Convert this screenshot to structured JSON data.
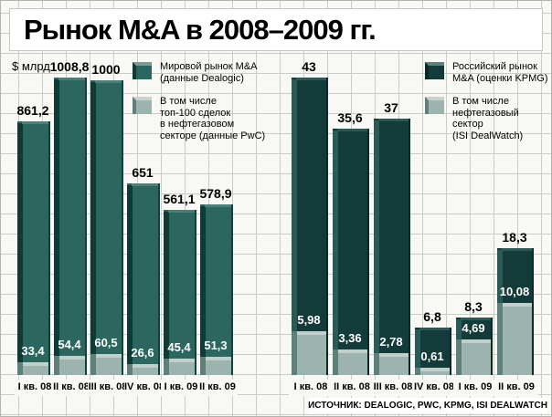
{
  "title": "Рынок M&A в 2008–2009 гг.",
  "ylabel": "$ млрд",
  "source": "ИСТОЧНИК: DEALOGIC, PWC, KPMG, ISI DEALWATCH",
  "legend_left": [
    {
      "label": "Мировой рынок M&A\n(данные Dealogic)",
      "swatch": "world"
    },
    {
      "label": "В том числе\nтоп-100 сделок\nв нефтегазовом\nсекторе (данные PwC)",
      "swatch": "oilgas"
    }
  ],
  "legend_right": [
    {
      "label": "Российский рынок\nM&A (оценки KPMG)",
      "swatch": "russia"
    },
    {
      "label": "В том числе\nнефтегазовый\nсектор\n(ISI DealWatch)",
      "swatch": "oilgas"
    }
  ],
  "colors": {
    "world_bar": "#2b675e",
    "russia_bar": "#123b39",
    "oil_gas_bar": "#9db3ae",
    "background": "#f8f8f4",
    "grid_line": "#cbcbc8"
  },
  "chart_data": [
    {
      "type": "bar",
      "title": "Мировой рынок M&A (данные Dealogic)",
      "unit": "$ млрд",
      "categories": [
        "I кв. 08",
        "II кв. 08",
        "III кв. 08",
        "IV кв. 08",
        "I кв. 09",
        "II кв. 09"
      ],
      "series": [
        {
          "name": "Мировой рынок M&A (данные Dealogic)",
          "values": [
            861.2,
            1008.8,
            1000,
            651,
            561.1,
            578.9
          ],
          "labels": [
            "861,2",
            "1008,8",
            "1000",
            "651",
            "561,1",
            "578,9"
          ]
        },
        {
          "name": "В том числе топ-100 сделок в нефтегазовом секторе (данные PwC)",
          "values": [
            33.4,
            54.4,
            60.5,
            26.6,
            45.4,
            51.3
          ],
          "labels": [
            "33,4",
            "54,4",
            "60,5",
            "26,6",
            "45,4",
            "51,3"
          ]
        }
      ],
      "ylim": [
        0,
        1008.8
      ],
      "grid": true,
      "legend_position": "top"
    },
    {
      "type": "bar",
      "title": "Российский рынок M&A (оценки KPMG)",
      "unit": "$ млрд",
      "categories": [
        "I кв. 08",
        "II кв. 08",
        "III кв. 08",
        "IV кв. 08",
        "I кв. 09",
        "II кв. 09"
      ],
      "series": [
        {
          "name": "Российский рынок M&A (оценки KPMG)",
          "values": [
            43,
            35.6,
            37,
            6.8,
            8.3,
            18.3
          ],
          "labels": [
            "43",
            "35,6",
            "37",
            "6,8",
            "8,3",
            "18,3"
          ]
        },
        {
          "name": "В том числе нефтегазовый сектор (ISI DealWatch)",
          "values": [
            5.98,
            3.36,
            2.78,
            0.61,
            4.69,
            10.08
          ],
          "labels": [
            "5,98",
            "3,36",
            "2,78",
            "0,61",
            "4,69",
            "10,08"
          ]
        }
      ],
      "ylim": [
        0,
        43
      ],
      "grid": true,
      "legend_position": "top"
    }
  ]
}
